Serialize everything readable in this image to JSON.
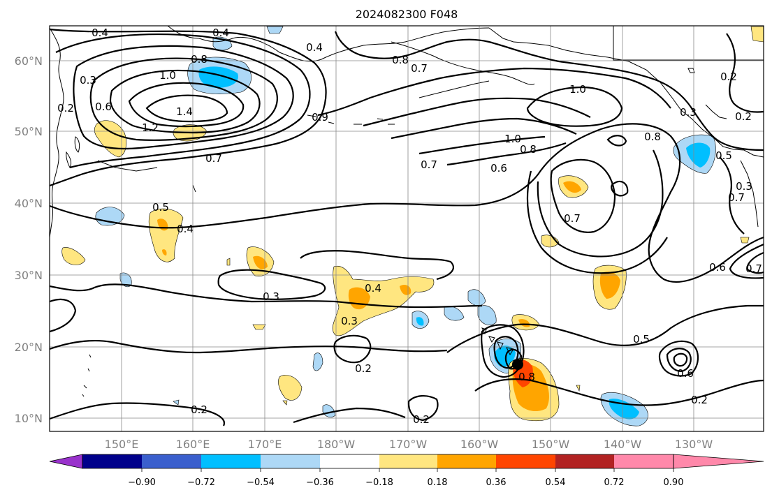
{
  "title": "2024082300 F048",
  "lat_labels": [
    "60°N",
    "50°N",
    "40°N",
    "30°N",
    "20°N",
    "10°N"
  ],
  "lon_labels": [
    "150°E",
    "160°E",
    "170°E",
    "180°W",
    "170°W",
    "160°W",
    "150°W",
    "140°W",
    "130°W"
  ],
  "colorbar": {
    "ticks": [
      "−0.90",
      "−0.72",
      "−0.54",
      "−0.36",
      "−0.18",
      "0.18",
      "0.36",
      "0.54",
      "0.72",
      "0.90"
    ],
    "colors": [
      "#9932cc",
      "#00008b",
      "#3a5fcd",
      "#00bfff",
      "#add8f6",
      "#ffffff",
      "#ffe680",
      "#ffa500",
      "#ff4500",
      "#b22222",
      "#ff88aa"
    ]
  },
  "contour_labels": [
    "0.4",
    "0.4",
    "0.4",
    "0.8",
    "0.7",
    "0.8",
    "1.0",
    "1.4",
    "1.2",
    "0.9",
    "0.7",
    "0.6",
    "0.3",
    "0.2",
    "0.2",
    "1.0",
    "1.0",
    "0.8",
    "0.7",
    "0.6",
    "0.8",
    "0.5",
    "0.7",
    "0.2",
    "0.3",
    "0.7",
    "0.5",
    "0.6",
    "0.7",
    "0.3",
    "0.4",
    "0.3",
    "0.4",
    "0.3",
    "0.2",
    "0.2",
    "0.2",
    "0.5",
    "0.6",
    "0.2",
    "0.8"
  ],
  "colors": {
    "contour": "#000000",
    "grid": "#888888",
    "pos_light": "#ffe680",
    "pos_mid": "#ffa500",
    "pos_strong": "#ff4500",
    "neg_light": "#add8f6",
    "neg_mid": "#00bfff"
  }
}
